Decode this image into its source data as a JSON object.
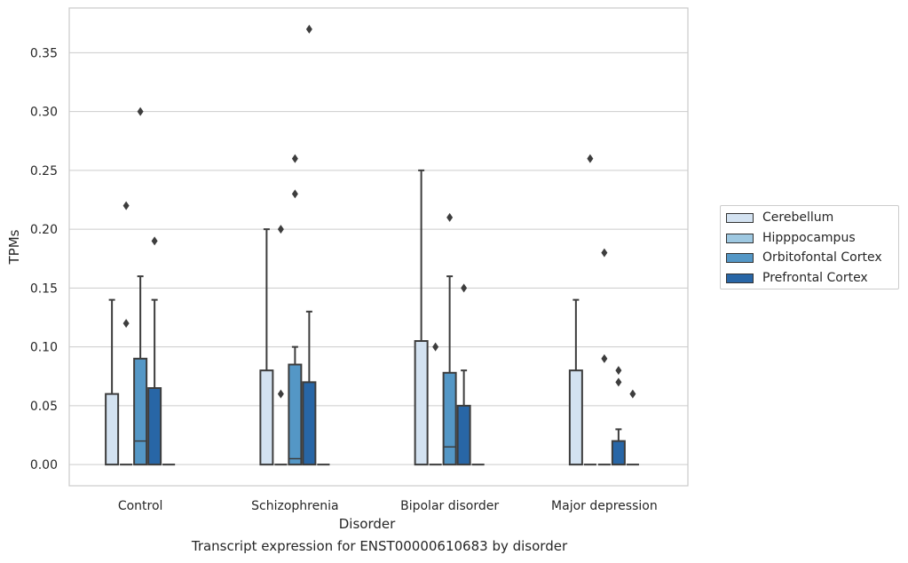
{
  "chart_data": {
    "type": "box",
    "title": "",
    "caption": "Transcript expression for ENST00000610683 by disorder",
    "xlabel": "Disorder",
    "ylabel": "TPMs",
    "ylim": [
      -0.018,
      0.388
    ],
    "yticks": [
      "0.00",
      "0.05",
      "0.10",
      "0.15",
      "0.20",
      "0.25",
      "0.30",
      "0.35"
    ],
    "grid": "horizontal",
    "legend_position": "right",
    "categories": [
      "Control",
      "Schizophrenia",
      "Bipolar disorder",
      "Major depression"
    ],
    "series": [
      {
        "name": "Cerebellum",
        "color": "#d3e2f1",
        "boxes": [
          {
            "whislo": 0.0,
            "q1": 0.0,
            "med": 0.0,
            "q3": 0.06,
            "whishi": 0.14,
            "fliers": []
          },
          {
            "whislo": 0.0,
            "q1": 0.0,
            "med": 0.0,
            "q3": 0.08,
            "whishi": 0.2,
            "fliers": []
          },
          {
            "whislo": 0.0,
            "q1": 0.0,
            "med": 0.0,
            "q3": 0.105,
            "whishi": 0.25,
            "fliers": []
          },
          {
            "whislo": 0.0,
            "q1": 0.0,
            "med": 0.0,
            "q3": 0.08,
            "whishi": 0.14,
            "fliers": []
          }
        ]
      },
      {
        "name": "Hipppocampus",
        "color": "#9ec8e1",
        "boxes": [
          {
            "whislo": 0.0,
            "q1": 0.0,
            "med": 0.0,
            "q3": 0.0,
            "whishi": 0.0,
            "fliers": [
              0.12,
              0.22
            ]
          },
          {
            "whislo": 0.0,
            "q1": 0.0,
            "med": 0.0,
            "q3": 0.0,
            "whishi": 0.0,
            "fliers": [
              0.06,
              0.2
            ]
          },
          {
            "whislo": 0.0,
            "q1": 0.0,
            "med": 0.0,
            "q3": 0.0,
            "whishi": 0.0,
            "fliers": [
              0.1
            ]
          },
          {
            "whislo": 0.0,
            "q1": 0.0,
            "med": 0.0,
            "q3": 0.0,
            "whishi": 0.0,
            "fliers": [
              0.26
            ]
          }
        ]
      },
      {
        "name": "Orbitofontal Cortex",
        "color": "#5497c6",
        "boxes": [
          {
            "whislo": 0.0,
            "q1": 0.0,
            "med": 0.02,
            "q3": 0.09,
            "whishi": 0.16,
            "fliers": [
              0.3
            ]
          },
          {
            "whislo": 0.0,
            "q1": 0.0,
            "med": 0.005,
            "q3": 0.085,
            "whishi": 0.1,
            "fliers": [
              0.23,
              0.26
            ]
          },
          {
            "whislo": 0.0,
            "q1": 0.0,
            "med": 0.015,
            "q3": 0.078,
            "whishi": 0.16,
            "fliers": [
              0.21
            ]
          },
          {
            "whislo": 0.0,
            "q1": 0.0,
            "med": 0.0,
            "q3": 0.0,
            "whishi": 0.0,
            "fliers": [
              0.18,
              0.09
            ]
          }
        ]
      },
      {
        "name": "Prefrontal Cortex",
        "color": "#2866a6",
        "boxes": [
          {
            "whislo": 0.0,
            "q1": 0.0,
            "med": 0.0,
            "q3": 0.065,
            "whishi": 0.14,
            "fliers": [
              0.19
            ]
          },
          {
            "whislo": 0.0,
            "q1": 0.0,
            "med": 0.0,
            "q3": 0.07,
            "whishi": 0.13,
            "fliers": [
              0.37
            ]
          },
          {
            "whislo": 0.0,
            "q1": 0.0,
            "med": 0.0,
            "q3": 0.05,
            "whishi": 0.08,
            "fliers": [
              0.15
            ]
          },
          {
            "whislo": 0.0,
            "q1": 0.0,
            "med": 0.0,
            "q3": 0.02,
            "whishi": 0.03,
            "fliers": [
              0.07,
              0.08
            ]
          }
        ]
      },
      {
        "name": "",
        "color": "#2866a6",
        "note_hidden": true,
        "boxes": [
          {
            "whislo": 0.0,
            "q1": 0.0,
            "med": 0.0,
            "q3": 0.0,
            "whishi": 0.0,
            "fliers": []
          },
          {
            "whislo": 0.0,
            "q1": 0.0,
            "med": 0.0,
            "q3": 0.0,
            "whishi": 0.0,
            "fliers": []
          },
          {
            "whislo": 0.0,
            "q1": 0.0,
            "med": 0.0,
            "q3": 0.0,
            "whishi": 0.0,
            "fliers": []
          },
          {
            "whislo": 0.0,
            "q1": 0.0,
            "med": 0.0,
            "q3": 0.0,
            "whishi": 0.0,
            "fliers": [
              0.06
            ]
          }
        ]
      }
    ]
  }
}
